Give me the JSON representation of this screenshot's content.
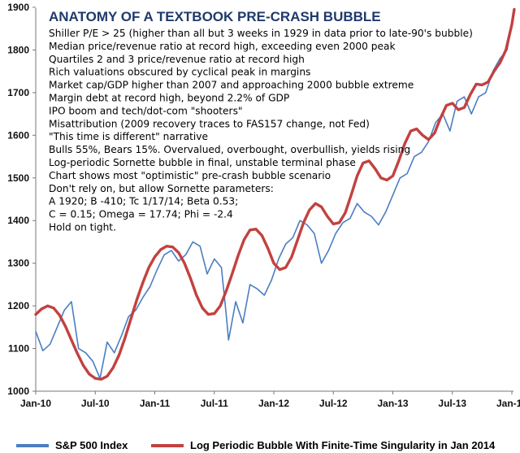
{
  "chart_data": {
    "type": "line",
    "title": "ANATOMY OF A TEXTBOOK PRE-CRASH BUBBLE",
    "ylim": [
      1000,
      1900
    ],
    "yticks": [
      "1000",
      "1100",
      "1200",
      "1300",
      "1400",
      "1500",
      "1600",
      "1700",
      "1800",
      "1900"
    ],
    "xticks": [
      "Jan-10",
      "Jul-10",
      "Jan-11",
      "Jul-11",
      "Jan-12",
      "Jul-12",
      "Jan-13",
      "Jul-13",
      "Jan-14"
    ],
    "grid": false,
    "legend_position": "bottom",
    "annotations": [
      "Shiller P/E > 25 (higher than all but 3 weeks in 1929 in data prior to late-90's bubble)",
      "Median price/revenue ratio at record high, exceeding even 2000 peak",
      "Quartiles 2 and 3 price/revenue ratio at record high",
      "Rich valuations obscured by cyclical peak in margins",
      "Market cap/GDP higher than 2007 and approaching 2000  bubble extreme",
      "Margin debt at record high, beyond 2.2% of GDP",
      "IPO boom and tech/dot-com \"shooters\"",
      "Misattribution (2009  recovery traces to FAS157 change, not Fed)",
      "\"This time is different\" narrative",
      "Bulls 55%, Bears 15%.  Overvalued, overbought, overbullish, yields rising",
      "Log-periodic Sornette bubble in final, unstable terminal phase",
      "Chart shows most \"optimistic\" pre-crash bubble scenario",
      "Don't rely on, but allow Sornette parameters:",
      "A 1920; B -410; Tc 1/17/14;  Beta 0.53;",
      "C = 0.15; Omega = 17.74; Phi = -2.4",
      "Hold on tight."
    ],
    "series": [
      {
        "name": "S&P 500 Index",
        "color": "#4a7ec2",
        "x": [
          2010.0,
          2010.06,
          2010.12,
          2010.18,
          2010.24,
          2010.3,
          2010.36,
          2010.42,
          2010.48,
          2010.54,
          2010.6,
          2010.66,
          2010.72,
          2010.78,
          2010.84,
          2010.9,
          2010.96,
          2011.02,
          2011.08,
          2011.14,
          2011.2,
          2011.26,
          2011.32,
          2011.38,
          2011.44,
          2011.5,
          2011.56,
          2011.6,
          2011.62,
          2011.68,
          2011.74,
          2011.8,
          2011.86,
          2011.92,
          2011.98,
          2012.04,
          2012.1,
          2012.16,
          2012.22,
          2012.28,
          2012.34,
          2012.4,
          2012.46,
          2012.52,
          2012.58,
          2012.64,
          2012.7,
          2012.76,
          2012.82,
          2012.88,
          2012.94,
          2013.0,
          2013.06,
          2013.12,
          2013.18,
          2013.24,
          2013.3,
          2013.36,
          2013.42,
          2013.48,
          2013.54,
          2013.6,
          2013.66,
          2013.72,
          2013.78,
          2013.84,
          2013.9,
          2013.96,
          2014.0
        ],
        "values": [
          1140,
          1095,
          1110,
          1150,
          1190,
          1210,
          1100,
          1090,
          1070,
          1030,
          1115,
          1090,
          1130,
          1175,
          1190,
          1220,
          1245,
          1285,
          1320,
          1330,
          1305,
          1320,
          1350,
          1340,
          1275,
          1310,
          1290,
          1180,
          1120,
          1210,
          1160,
          1250,
          1240,
          1225,
          1260,
          1310,
          1345,
          1360,
          1400,
          1390,
          1370,
          1300,
          1330,
          1370,
          1395,
          1405,
          1440,
          1420,
          1410,
          1390,
          1420,
          1460,
          1500,
          1510,
          1550,
          1560,
          1585,
          1630,
          1650,
          1610,
          1680,
          1690,
          1650,
          1690,
          1700,
          1750,
          1780,
          1800,
          1860
        ]
      },
      {
        "name": "Log Periodic Bubble With Finite-Time Singularity in Jan 2014",
        "color": "#c2413f",
        "x": [
          2010.0,
          2010.05,
          2010.1,
          2010.15,
          2010.2,
          2010.25,
          2010.3,
          2010.35,
          2010.4,
          2010.45,
          2010.5,
          2010.55,
          2010.6,
          2010.65,
          2010.7,
          2010.75,
          2010.8,
          2010.85,
          2010.9,
          2010.95,
          2011.0,
          2011.05,
          2011.1,
          2011.15,
          2011.2,
          2011.25,
          2011.3,
          2011.35,
          2011.4,
          2011.45,
          2011.5,
          2011.55,
          2011.6,
          2011.65,
          2011.7,
          2011.75,
          2011.8,
          2011.85,
          2011.9,
          2011.95,
          2012.0,
          2012.05,
          2012.1,
          2012.15,
          2012.2,
          2012.25,
          2012.3,
          2012.35,
          2012.4,
          2012.45,
          2012.5,
          2012.55,
          2012.6,
          2012.65,
          2012.7,
          2012.75,
          2012.8,
          2012.85,
          2012.9,
          2012.95,
          2013.0,
          2013.05,
          2013.1,
          2013.15,
          2013.2,
          2013.25,
          2013.3,
          2013.35,
          2013.4,
          2013.45,
          2013.5,
          2013.55,
          2013.6,
          2013.65,
          2013.7,
          2013.75,
          2013.8,
          2013.85,
          2013.9,
          2013.95,
          2014.0,
          2014.02
        ],
        "values": [
          1180,
          1193,
          1200,
          1195,
          1178,
          1152,
          1120,
          1088,
          1060,
          1040,
          1030,
          1028,
          1035,
          1055,
          1085,
          1125,
          1170,
          1215,
          1255,
          1290,
          1315,
          1332,
          1340,
          1338,
          1325,
          1300,
          1265,
          1225,
          1195,
          1180,
          1182,
          1200,
          1235,
          1275,
          1318,
          1355,
          1378,
          1380,
          1365,
          1335,
          1300,
          1285,
          1290,
          1315,
          1355,
          1395,
          1425,
          1440,
          1432,
          1410,
          1392,
          1395,
          1418,
          1460,
          1505,
          1535,
          1540,
          1522,
          1500,
          1495,
          1505,
          1540,
          1580,
          1610,
          1615,
          1600,
          1590,
          1605,
          1640,
          1670,
          1675,
          1660,
          1665,
          1695,
          1720,
          1718,
          1725,
          1750,
          1770,
          1800,
          1860,
          1895
        ]
      }
    ]
  }
}
